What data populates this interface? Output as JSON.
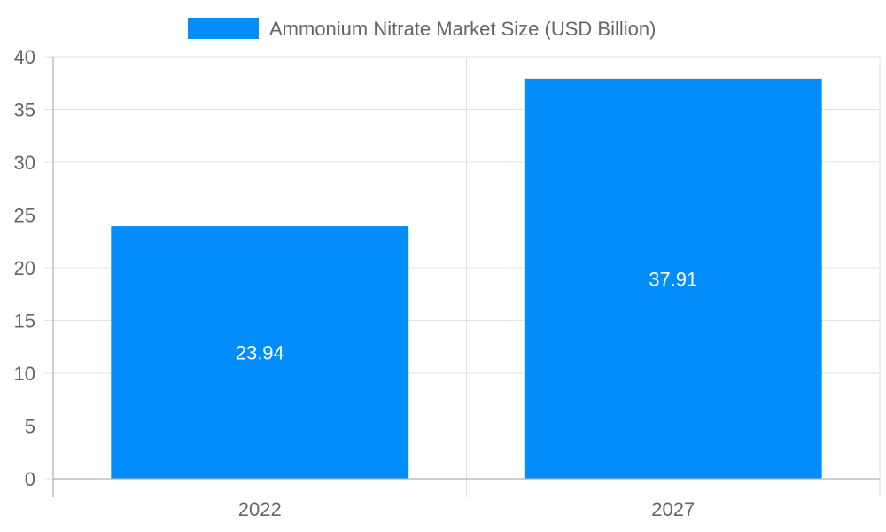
{
  "chart_data": {
    "type": "bar",
    "categories": [
      "2022",
      "2027"
    ],
    "series": [
      {
        "name": "Ammonium Nitrate Market Size (USD Billion)",
        "values": [
          23.94,
          37.91
        ],
        "color": "#038cfc"
      }
    ],
    "data_labels": [
      "23.94",
      "37.91"
    ],
    "ylim": [
      0,
      40
    ],
    "yticks": [
      0,
      5,
      10,
      15,
      20,
      25,
      30,
      35,
      40
    ],
    "grid": true,
    "legend_position": "top"
  },
  "colors": {
    "bar": "#038cfc",
    "grid": "#e0e0e0",
    "axis": "#b0b0b0",
    "text": "#666666",
    "label": "#ffffff"
  }
}
